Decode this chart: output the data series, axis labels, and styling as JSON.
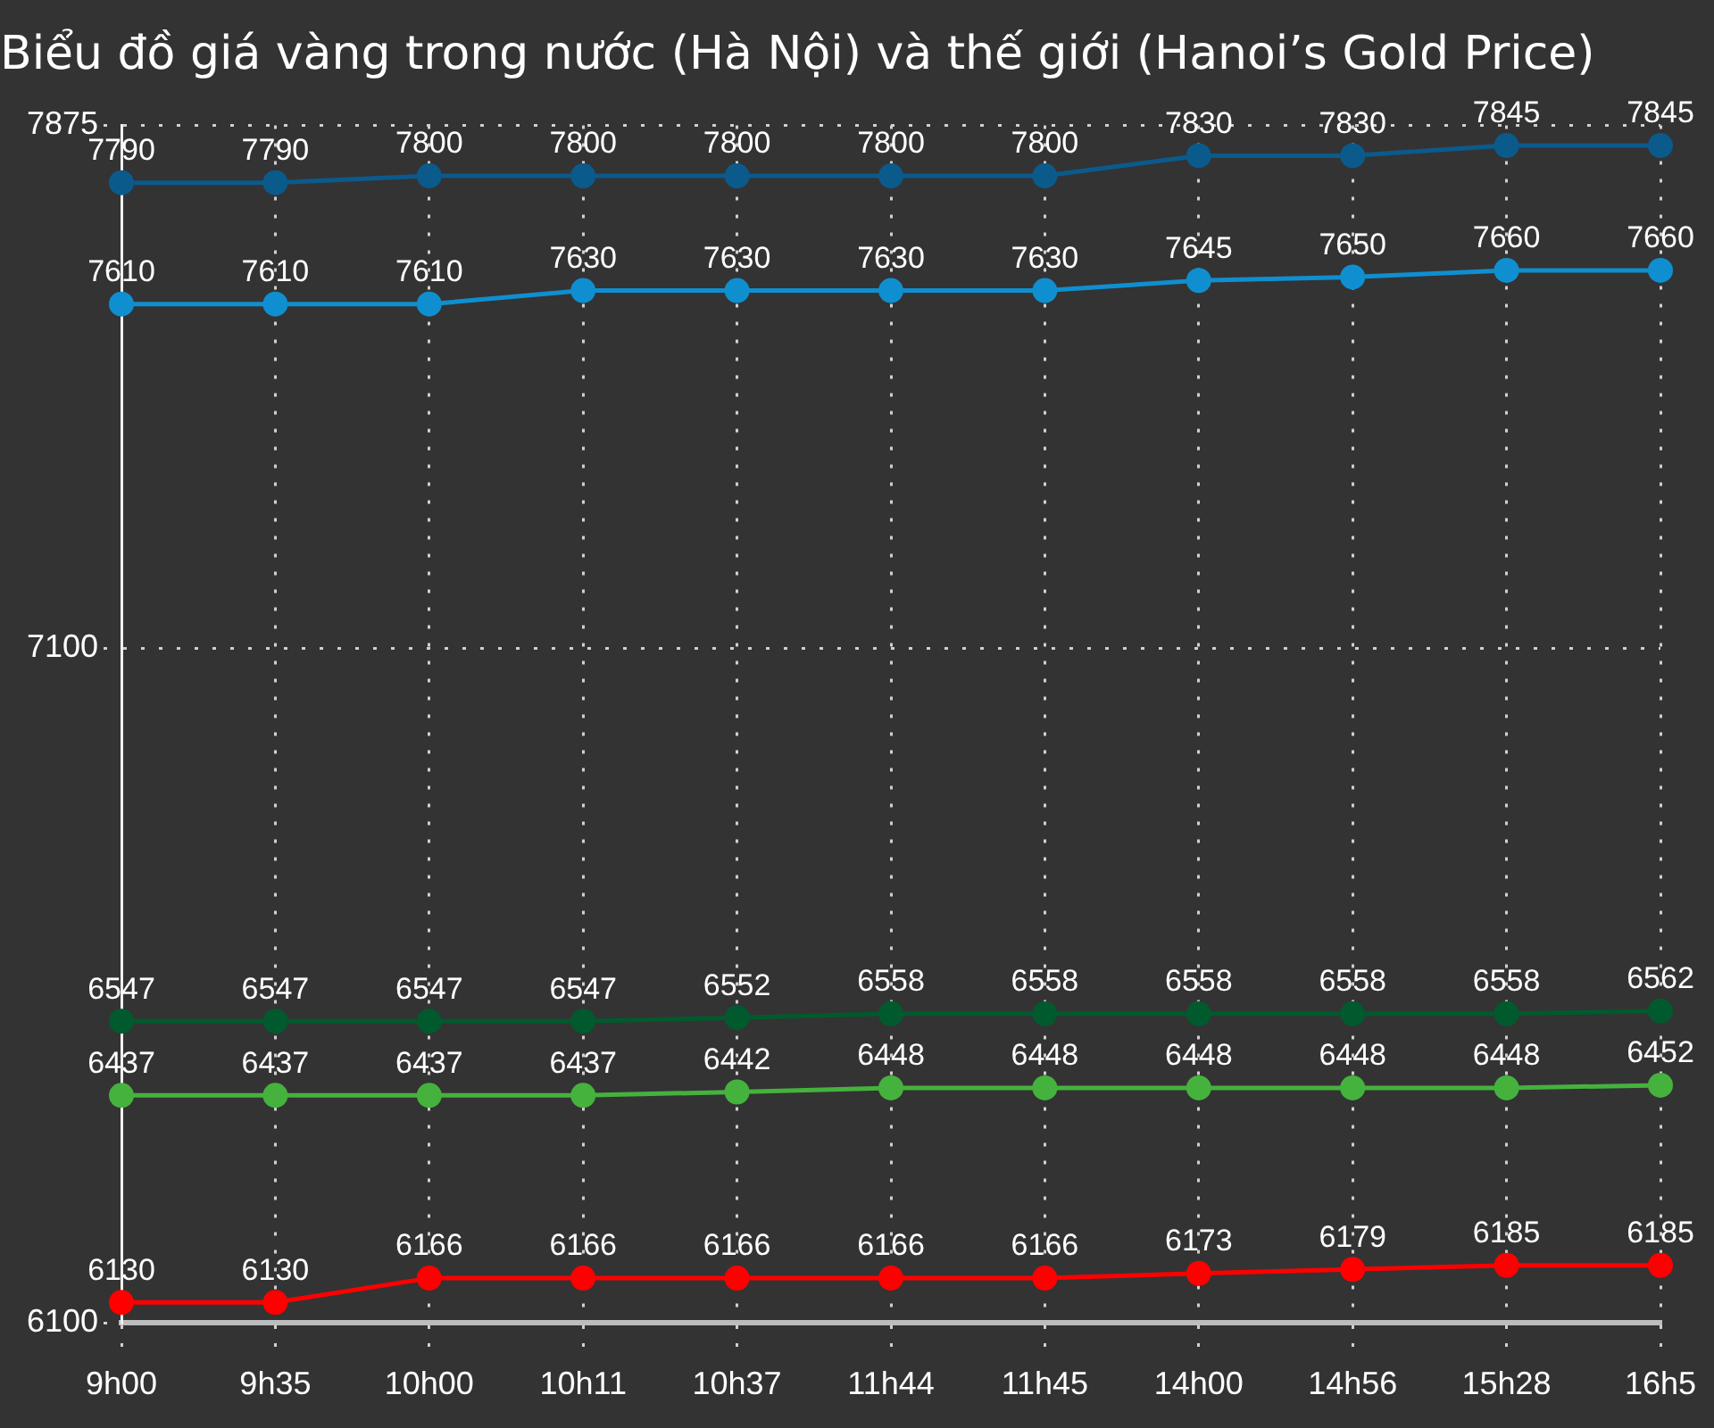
{
  "chart_data": {
    "type": "line",
    "title": "Biểu đồ giá vàng trong nước (Hà Nội) và thế giới (Hanoi’s Gold Price)",
    "categories": [
      "9h00",
      "9h35",
      "10h00",
      "10h11",
      "10h37",
      "11h44",
      "11h45",
      "14h00",
      "14h56",
      "15h28",
      "16h5"
    ],
    "series": [
      {
        "color": "#0b5a8c",
        "values": [
          7790,
          7790,
          7800,
          7800,
          7800,
          7800,
          7800,
          7830,
          7830,
          7845,
          7845
        ]
      },
      {
        "color": "#0f8fd0",
        "values": [
          7610,
          7610,
          7610,
          7630,
          7630,
          7630,
          7630,
          7645,
          7650,
          7660,
          7660
        ]
      },
      {
        "color": "#005a2e",
        "values": [
          6547,
          6547,
          6547,
          6547,
          6552,
          6558,
          6558,
          6558,
          6558,
          6558,
          6562
        ]
      },
      {
        "color": "#45b23d",
        "values": [
          6437,
          6437,
          6437,
          6437,
          6442,
          6448,
          6448,
          6448,
          6448,
          6448,
          6452
        ]
      },
      {
        "color": "#ff0000",
        "values": [
          6130,
          6130,
          6166,
          6166,
          6166,
          6166,
          6166,
          6173,
          6179,
          6185,
          6185
        ]
      }
    ],
    "ylim": [
      6100,
      7875
    ],
    "yticks": [
      6100,
      7100,
      7875
    ],
    "grid": true,
    "legend": false,
    "marker": "circle",
    "line_style": "solid",
    "data_labels": true
  }
}
